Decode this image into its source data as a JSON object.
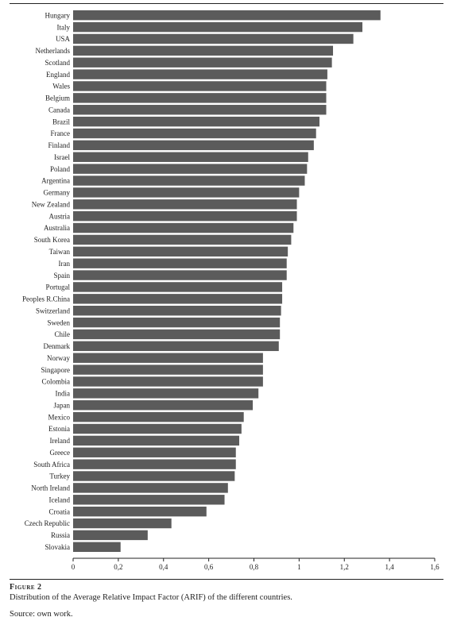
{
  "figure": {
    "title": "Figure 2",
    "caption": "Distribution of the Average Relative Impact Factor (ARIF) of the different countries.",
    "source": "Source: own work."
  },
  "colors": {
    "bar": "#5b5b5b",
    "axis": "#222222"
  },
  "chart_data": {
    "type": "bar",
    "orientation": "horizontal",
    "title": "",
    "xlabel": "",
    "ylabel": "",
    "xlim": [
      0,
      1.6
    ],
    "xticks": [
      0,
      0.2,
      0.4,
      0.6,
      0.8,
      1,
      1.2,
      1.4,
      1.6
    ],
    "xtick_labels": [
      "0",
      "0,2",
      "0,4",
      "0,6",
      "0,8",
      "1",
      "1,2",
      "1,4",
      "1,6"
    ],
    "grid": false,
    "categories": [
      "Hungary",
      "Italy",
      "USA",
      "Netherlands",
      "Scotland",
      "England",
      "Wales",
      "Belgium",
      "Canada",
      "Brazil",
      "France",
      "Finland",
      "Israel",
      "Poland",
      "Argentina",
      "Germany",
      "New Zealand",
      "Austria",
      "Australia",
      "South Korea",
      "Taiwan",
      "Iran",
      "Spain",
      "Portugal",
      "Peoples R.China",
      "Switzerland",
      "Sweden",
      "Chile",
      "Denmark",
      "Norway",
      "Singapore",
      "Colombia",
      "India",
      "Japan",
      "Mexico",
      "Estonia",
      "Ireland",
      "Greece",
      "South Africa",
      "Turkey",
      "North Ireland",
      "Iceland",
      "Croatia",
      "Czech Republic",
      "Russia",
      "Slovakia"
    ],
    "values": [
      1.36,
      1.28,
      1.24,
      1.15,
      1.145,
      1.125,
      1.12,
      1.12,
      1.12,
      1.09,
      1.075,
      1.065,
      1.04,
      1.035,
      1.025,
      1.0,
      0.99,
      0.99,
      0.975,
      0.965,
      0.95,
      0.945,
      0.945,
      0.925,
      0.925,
      0.92,
      0.915,
      0.915,
      0.91,
      0.84,
      0.84,
      0.84,
      0.82,
      0.795,
      0.755,
      0.745,
      0.735,
      0.72,
      0.72,
      0.715,
      0.685,
      0.67,
      0.59,
      0.435,
      0.33,
      0.21
    ]
  }
}
